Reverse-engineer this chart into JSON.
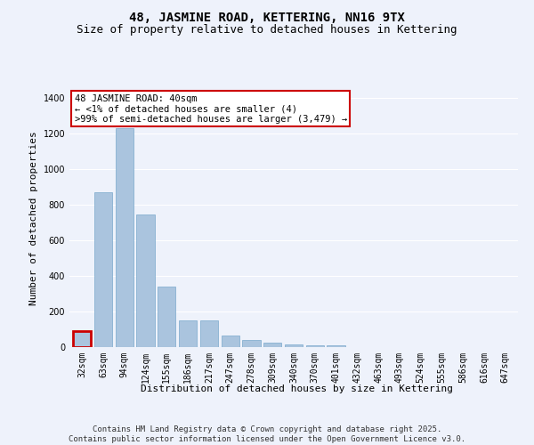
{
  "title": "48, JASMINE ROAD, KETTERING, NN16 9TX",
  "subtitle": "Size of property relative to detached houses in Kettering",
  "xlabel": "Distribution of detached houses by size in Kettering",
  "ylabel": "Number of detached properties",
  "categories": [
    "32sqm",
    "63sqm",
    "94sqm",
    "124sqm",
    "155sqm",
    "186sqm",
    "217sqm",
    "247sqm",
    "278sqm",
    "309sqm",
    "340sqm",
    "370sqm",
    "401sqm",
    "432sqm",
    "463sqm",
    "493sqm",
    "524sqm",
    "555sqm",
    "586sqm",
    "616sqm",
    "647sqm"
  ],
  "values": [
    90,
    870,
    1230,
    745,
    340,
    150,
    150,
    65,
    40,
    25,
    15,
    10,
    10,
    0,
    0,
    0,
    0,
    0,
    0,
    0,
    0
  ],
  "bar_color": "#aac4de",
  "bar_edge_color": "#7aa8cc",
  "highlight_color": "#cc0000",
  "highlight_bar_index": 0,
  "annotation_title": "48 JASMINE ROAD: 40sqm",
  "annotation_line2": "← <1% of detached houses are smaller (4)",
  "annotation_line3": ">99% of semi-detached houses are larger (3,479) →",
  "annotation_box_color": "#cc0000",
  "ylim": [
    0,
    1450
  ],
  "yticks": [
    0,
    200,
    400,
    600,
    800,
    1000,
    1200,
    1400
  ],
  "footer_line1": "Contains HM Land Registry data © Crown copyright and database right 2025.",
  "footer_line2": "Contains public sector information licensed under the Open Government Licence v3.0.",
  "background_color": "#eef2fb",
  "plot_background": "#eef2fb",
  "grid_color": "#ffffff",
  "title_fontsize": 10,
  "subtitle_fontsize": 9,
  "axis_label_fontsize": 8,
  "tick_fontsize": 7,
  "footer_fontsize": 6.5,
  "annotation_fontsize": 7.5
}
